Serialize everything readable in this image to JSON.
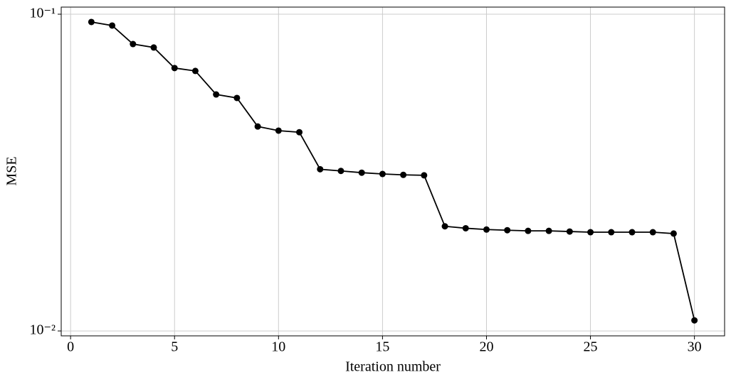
{
  "chart_data": {
    "type": "line",
    "xlabel": "Iteration number",
    "ylabel": "MSE",
    "yscale": "log",
    "grid": true,
    "series": [
      {
        "color": "#000000",
        "x": [
          1,
          2,
          3,
          4,
          5,
          6,
          7,
          8,
          9,
          10,
          11,
          12,
          13,
          14,
          15,
          16,
          17,
          18,
          19,
          20,
          21,
          22,
          23,
          24,
          25,
          26,
          27,
          28,
          29,
          30
        ],
        "values": [
          0.0945,
          0.0921,
          0.0805,
          0.0785,
          0.0676,
          0.0662,
          0.0558,
          0.0544,
          0.0442,
          0.0429,
          0.0424,
          0.0324,
          0.032,
          0.0316,
          0.0313,
          0.0311,
          0.031,
          0.0214,
          0.0211,
          0.0209,
          0.0208,
          0.0207,
          0.0207,
          0.0206,
          0.0205,
          0.0205,
          0.0205,
          0.0205,
          0.0203,
          0.0108
        ]
      }
    ],
    "xlim": [
      -0.45,
      31.45
    ],
    "xticks": [
      0,
      5,
      10,
      15,
      20,
      25,
      30
    ],
    "ylim": [
      0.00965,
      0.1053
    ],
    "yticks": [
      {
        "value": 0.01,
        "label": "10⁻²"
      },
      {
        "value": 0.1,
        "label": "10⁻¹"
      }
    ]
  }
}
